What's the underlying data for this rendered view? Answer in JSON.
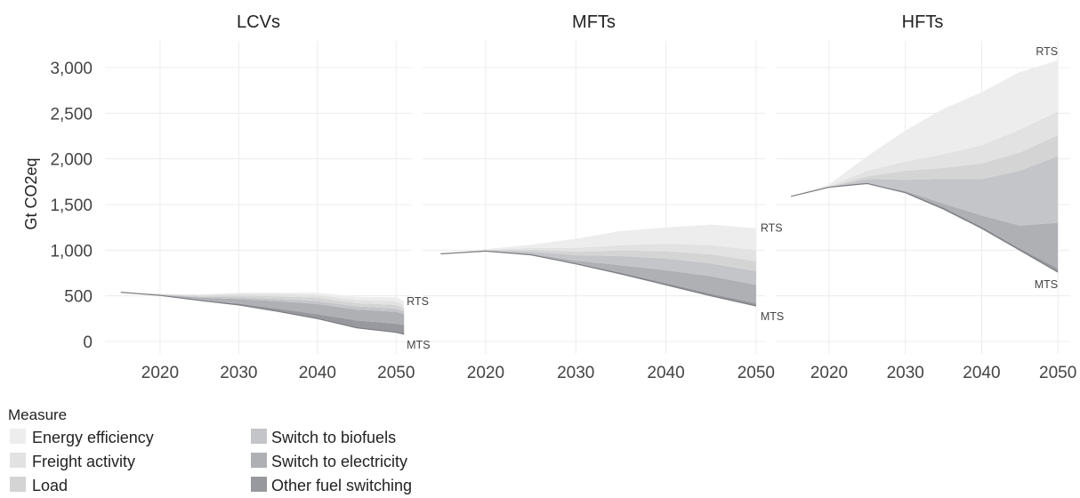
{
  "chart_data": {
    "type": "area",
    "stacking": "stacked, highest band on top",
    "ylabel": "Gt CO2eq",
    "ylim": [
      0,
      3000
    ],
    "y_ticks": [
      0,
      500,
      1000,
      1500,
      2000,
      2500,
      3000
    ],
    "y_tick_labels": [
      "0",
      "500",
      "1,000",
      "1,500",
      "2,000",
      "2,500",
      "3,000"
    ],
    "x_ticks": [
      2020,
      2030,
      2040,
      2050
    ],
    "x_tick_labels": [
      "2020",
      "2030",
      "2040",
      "2050"
    ],
    "grid": true,
    "legend": {
      "title": "Measure",
      "placement": "bottom-left",
      "items": [
        {
          "label": "Energy efficiency",
          "color": "#ededed"
        },
        {
          "label": "Freight activity",
          "color": "#e2e2e2"
        },
        {
          "label": "Load",
          "color": "#d4d4d4"
        },
        {
          "label": "Switch to biofuels",
          "color": "#c3c5c8"
        },
        {
          "label": "Switch to electricity",
          "color": "#aeb0b4"
        },
        {
          "label": "Other fuel switching",
          "color": "#97999e"
        }
      ]
    },
    "end_labels": {
      "top": "RTS",
      "bottom": "MTS"
    },
    "series_order": [
      "Energy efficiency",
      "Freight activity",
      "Load",
      "Switch to biofuels",
      "Switch to electricity",
      "Other fuel switching"
    ],
    "facets": [
      {
        "title": "LCVs",
        "x": [
          2015,
          2020,
          2025,
          2030,
          2035,
          2040,
          2045,
          2050,
          2051
        ],
        "mts": [
          540,
          505,
          450,
          400,
          330,
          250,
          150,
          100,
          80
        ],
        "series": [
          {
            "name": "Other fuel switching",
            "values": [
              0,
              0,
              5,
              15,
              30,
              50,
              80,
              95,
              100
            ]
          },
          {
            "name": "Switch to electricity",
            "values": [
              0,
              5,
              25,
              50,
              80,
              110,
              120,
              130,
              120
            ]
          },
          {
            "name": "Switch to biofuels",
            "values": [
              0,
              5,
              10,
              20,
              25,
              30,
              35,
              35,
              30
            ]
          },
          {
            "name": "Load",
            "values": [
              0,
              5,
              10,
              20,
              30,
              40,
              35,
              40,
              30
            ]
          },
          {
            "name": "Freight activity",
            "values": [
              0,
              0,
              10,
              20,
              25,
              30,
              35,
              40,
              30
            ]
          },
          {
            "name": "Energy efficiency",
            "values": [
              0,
              0,
              5,
              10,
              15,
              25,
              35,
              45,
              50
            ]
          }
        ]
      },
      {
        "title": "MFTs",
        "x": [
          2015,
          2020,
          2025,
          2030,
          2035,
          2040,
          2045,
          2050
        ],
        "mts": [
          960,
          990,
          950,
          850,
          740,
          620,
          500,
          390
        ],
        "series": [
          {
            "name": "Other fuel switching",
            "values": [
              0,
              0,
              5,
              10,
              15,
              20,
              25,
              30
            ]
          },
          {
            "name": "Switch to electricity",
            "values": [
              0,
              0,
              5,
              25,
              80,
              140,
              190,
              200
            ]
          },
          {
            "name": "Switch to biofuels",
            "values": [
              0,
              5,
              25,
              60,
              100,
              130,
              140,
              150
            ]
          },
          {
            "name": "Load",
            "values": [
              0,
              5,
              20,
              40,
              60,
              80,
              100,
              110
            ]
          },
          {
            "name": "Freight activity",
            "values": [
              0,
              5,
              20,
              40,
              60,
              80,
              100,
              120
            ]
          },
          {
            "name": "Energy efficiency",
            "values": [
              0,
              5,
              35,
              100,
              155,
              180,
              225,
              240
            ]
          }
        ]
      },
      {
        "title": "HFTs",
        "x": [
          2015,
          2020,
          2025,
          2030,
          2035,
          2040,
          2045,
          2050
        ],
        "mts": [
          1590,
          1690,
          1730,
          1630,
          1450,
          1240,
          1000,
          760
        ],
        "series": [
          {
            "name": "Other fuel switching",
            "values": [
              0,
              0,
              0,
              10,
              20,
              20,
              20,
              40
            ]
          },
          {
            "name": "Switch to electricity",
            "values": [
              0,
              0,
              0,
              10,
              40,
              120,
              250,
              500
            ]
          },
          {
            "name": "Switch to biofuels",
            "values": [
              0,
              0,
              50,
              120,
              270,
              400,
              600,
              730
            ]
          },
          {
            "name": "Load",
            "values": [
              0,
              5,
              30,
              100,
              120,
              170,
              200,
              230
            ]
          },
          {
            "name": "Freight activity",
            "values": [
              0,
              5,
              60,
              100,
              150,
              200,
              250,
              260
            ]
          },
          {
            "name": "Energy efficiency",
            "values": [
              0,
              20,
              160,
              340,
              500,
              580,
              630,
              560
            ]
          }
        ]
      }
    ]
  }
}
